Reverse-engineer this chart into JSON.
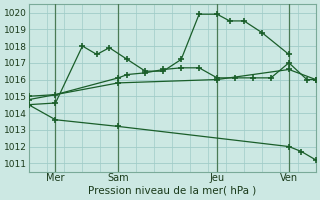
{
  "bg_color": "#cce8e3",
  "grid_color": "#a0ccc8",
  "line_color": "#1a5e2a",
  "xlabel": "Pression niveau de la mer( hPa )",
  "ylim": [
    1010.5,
    1020.5
  ],
  "yticks": [
    1011,
    1012,
    1013,
    1014,
    1015,
    1016,
    1017,
    1018,
    1019,
    1020
  ],
  "xlim": [
    0,
    16
  ],
  "xtick_positions": [
    1.5,
    5.0,
    10.5,
    14.5
  ],
  "xtick_labels": [
    "Mer",
    "Sam",
    "Jeu",
    "Ven"
  ],
  "vline_x": [
    1.5,
    5.0,
    10.5,
    14.5
  ],
  "series": [
    {
      "x": [
        0.0,
        1.5,
        3.0,
        3.8,
        4.5,
        5.5,
        6.5,
        7.5,
        8.5,
        9.5,
        10.5,
        11.2,
        12.0,
        13.0,
        14.5
      ],
      "y": [
        1014.5,
        1014.6,
        1018.0,
        1017.5,
        1017.9,
        1017.2,
        1016.5,
        1016.5,
        1017.2,
        1019.9,
        1019.9,
        1019.5,
        1019.5,
        1018.8,
        1017.5
      ]
    },
    {
      "x": [
        0.0,
        1.5,
        5.0,
        5.5,
        6.5,
        7.5,
        8.5,
        9.5,
        10.5,
        11.5,
        12.5,
        13.5,
        14.5,
        15.5,
        16.0
      ],
      "y": [
        1015.0,
        1015.1,
        1016.1,
        1016.3,
        1016.4,
        1016.6,
        1016.7,
        1016.7,
        1016.1,
        1016.1,
        1016.1,
        1016.1,
        1017.0,
        1016.0,
        1016.0
      ]
    },
    {
      "x": [
        0.0,
        5.0,
        10.5,
        14.5,
        16.0
      ],
      "y": [
        1014.8,
        1015.8,
        1016.0,
        1016.6,
        1016.0
      ]
    },
    {
      "x": [
        0.0,
        1.5,
        5.0,
        14.5,
        15.2,
        16.0
      ],
      "y": [
        1014.5,
        1013.6,
        1013.2,
        1012.0,
        1011.7,
        1011.2
      ]
    }
  ]
}
